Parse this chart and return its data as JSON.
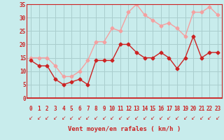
{
  "x": [
    0,
    1,
    2,
    3,
    4,
    5,
    6,
    7,
    8,
    9,
    10,
    11,
    12,
    13,
    14,
    15,
    16,
    17,
    18,
    19,
    20,
    21,
    22,
    23
  ],
  "wind_avg": [
    14,
    12,
    12,
    7,
    5,
    6,
    7,
    5,
    14,
    14,
    14,
    20,
    20,
    17,
    15,
    15,
    17,
    15,
    11,
    15,
    23,
    15,
    17,
    17
  ],
  "wind_gust": [
    15,
    15,
    15,
    12,
    8,
    8,
    10,
    14,
    21,
    21,
    26,
    25,
    32,
    35,
    31,
    29,
    27,
    28,
    26,
    23,
    32,
    32,
    34,
    31
  ],
  "avg_color": "#cc2222",
  "gust_color": "#f4a0a0",
  "bg_color": "#c8ecec",
  "grid_color": "#aacece",
  "axis_color": "#cc2222",
  "xlabel": "Vent moyen/en rafales ( km/h )",
  "ylim": [
    0,
    35
  ],
  "yticks": [
    0,
    5,
    10,
    15,
    20,
    25,
    30,
    35
  ],
  "xticks": [
    0,
    1,
    2,
    3,
    4,
    5,
    6,
    7,
    8,
    9,
    10,
    11,
    12,
    13,
    14,
    15,
    16,
    17,
    18,
    19,
    20,
    21,
    22,
    23
  ],
  "xlim": [
    -0.5,
    23.5
  ],
  "marker_size": 2.5,
  "line_width": 1.0,
  "arrow_char": "↙"
}
